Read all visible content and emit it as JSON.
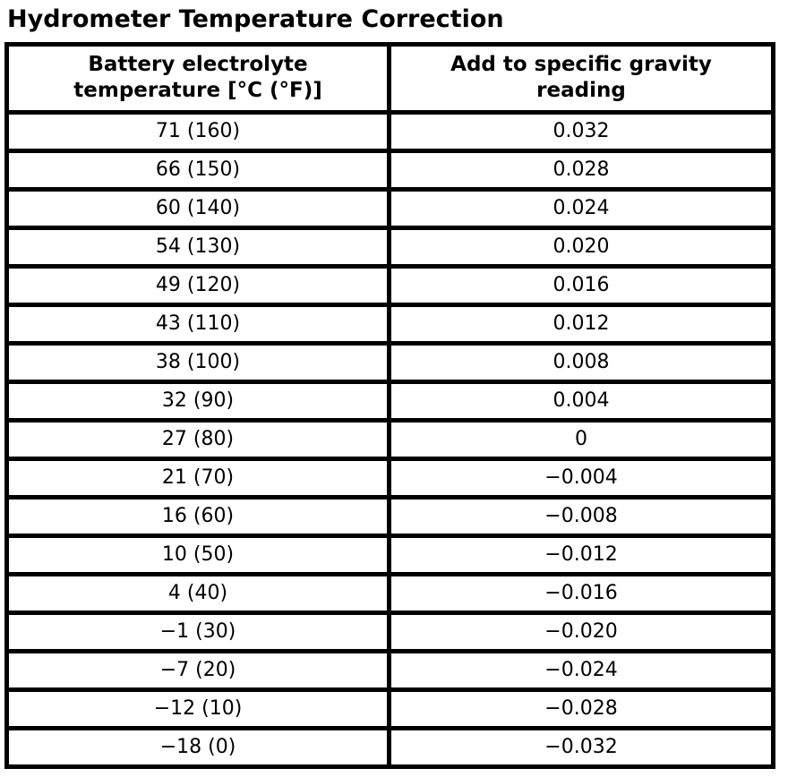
{
  "title": "Hydrometer Temperature Correction",
  "colors": {
    "border": "#000000",
    "background": "#ffffff",
    "text": "#000000"
  },
  "table": {
    "headers": [
      {
        "line1": "Battery electrolyte",
        "line2": "temperature [°C (°F)]"
      },
      {
        "line1": "Add to specific gravity",
        "line2": "reading"
      }
    ],
    "rows": [
      [
        "71 (160)",
        "0.032"
      ],
      [
        "66 (150)",
        "0.028"
      ],
      [
        "60 (140)",
        "0.024"
      ],
      [
        "54 (130)",
        "0.020"
      ],
      [
        "49 (120)",
        "0.016"
      ],
      [
        "43 (110)",
        "0.012"
      ],
      [
        "38 (100)",
        "0.008"
      ],
      [
        "32 (90)",
        "0.004"
      ],
      [
        "27 (80)",
        "0"
      ],
      [
        "21 (70)",
        "−0.004"
      ],
      [
        "16 (60)",
        "−0.008"
      ],
      [
        "10 (50)",
        "−0.012"
      ],
      [
        "4 (40)",
        "−0.016"
      ],
      [
        "−1 (30)",
        "−0.020"
      ],
      [
        "−7 (20)",
        "−0.024"
      ],
      [
        "−12 (10)",
        "−0.028"
      ],
      [
        "−18 (0)",
        "−0.032"
      ]
    ]
  }
}
